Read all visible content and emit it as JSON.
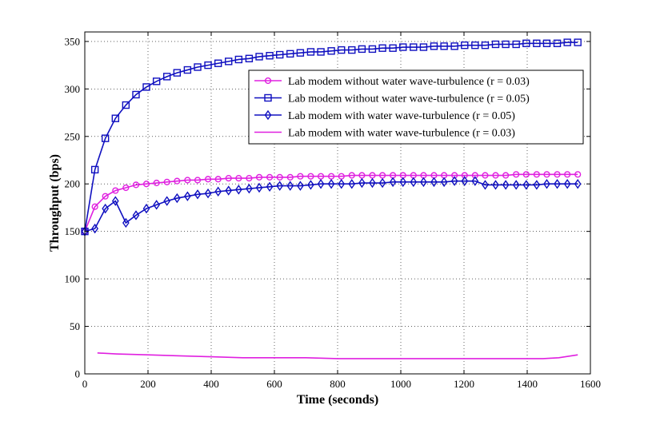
{
  "chart_data": {
    "type": "line",
    "title": "",
    "xlabel": "Time (seconds)",
    "ylabel": "Throughput (bps)",
    "xlim": [
      0,
      1600
    ],
    "ylim": [
      0,
      360
    ],
    "xticks": [
      "0",
      "200",
      "400",
      "600",
      "800",
      "1000",
      "1200",
      "1400",
      "1600"
    ],
    "yticks": [
      "0",
      "50",
      "100",
      "150",
      "200",
      "250",
      "300",
      "350"
    ],
    "grid": "dotted",
    "legend_position": "upper-right",
    "series": [
      {
        "name": "Lab modem without water wave-turbulence (r = 0.03)",
        "color": "#e020e0",
        "marker": "circle",
        "x": [
          0,
          32,
          65,
          97,
          130,
          162,
          195,
          227,
          260,
          292,
          325,
          357,
          390,
          422,
          455,
          487,
          520,
          552,
          585,
          617,
          650,
          682,
          715,
          747,
          780,
          812,
          845,
          877,
          910,
          942,
          975,
          1007,
          1040,
          1072,
          1105,
          1137,
          1170,
          1202,
          1235,
          1267,
          1300,
          1332,
          1365,
          1397,
          1430,
          1462,
          1495,
          1527,
          1560
        ],
        "y": [
          150,
          176,
          187,
          193,
          196,
          199,
          200,
          201,
          202,
          203,
          204,
          204,
          205,
          205,
          206,
          206,
          206,
          207,
          207,
          207,
          207,
          208,
          208,
          208,
          208,
          208,
          209,
          209,
          209,
          209,
          209,
          209,
          209,
          209,
          209,
          209,
          209,
          209,
          209,
          209,
          209,
          209,
          210,
          210,
          210,
          210,
          210,
          210,
          210
        ]
      },
      {
        "name": "Lab modem without water wave-turbulence (r = 0.05)",
        "color": "#1010c0",
        "marker": "square",
        "x": [
          0,
          32,
          65,
          97,
          130,
          162,
          195,
          227,
          260,
          292,
          325,
          357,
          390,
          422,
          455,
          487,
          520,
          552,
          585,
          617,
          650,
          682,
          715,
          747,
          780,
          812,
          845,
          877,
          910,
          942,
          975,
          1007,
          1040,
          1072,
          1105,
          1137,
          1170,
          1202,
          1235,
          1267,
          1300,
          1332,
          1365,
          1397,
          1430,
          1462,
          1495,
          1527,
          1560
        ],
        "y": [
          150,
          215,
          248,
          269,
          283,
          294,
          302,
          308,
          313,
          317,
          320,
          323,
          325,
          327,
          329,
          331,
          332,
          334,
          335,
          336,
          337,
          338,
          339,
          339,
          340,
          341,
          341,
          342,
          342,
          343,
          343,
          344,
          344,
          344,
          345,
          345,
          345,
          346,
          346,
          346,
          347,
          347,
          347,
          348,
          348,
          348,
          348,
          349,
          349
        ]
      },
      {
        "name": "Lab modem with water wave-turbulence (r = 0.05)",
        "color": "#1010c0",
        "marker": "diamond",
        "x": [
          0,
          32,
          65,
          97,
          130,
          162,
          195,
          227,
          260,
          292,
          325,
          357,
          390,
          422,
          455,
          487,
          520,
          552,
          585,
          617,
          650,
          682,
          715,
          747,
          780,
          812,
          845,
          877,
          910,
          942,
          975,
          1007,
          1040,
          1072,
          1105,
          1137,
          1170,
          1202,
          1235,
          1267,
          1300,
          1332,
          1365,
          1397,
          1430,
          1462,
          1495,
          1527,
          1560
        ],
        "y": [
          150,
          153,
          174,
          182,
          159,
          167,
          174,
          178,
          182,
          185,
          187,
          189,
          190,
          192,
          193,
          194,
          195,
          196,
          197,
          198,
          198,
          198,
          199,
          200,
          200,
          200,
          200,
          201,
          201,
          201,
          202,
          202,
          202,
          202,
          202,
          202,
          203,
          203,
          203,
          199,
          199,
          199,
          199,
          199,
          199,
          200,
          200,
          200,
          200
        ]
      },
      {
        "name": "Lab modem with water wave-turbulence (r = 0.03)",
        "color": "#e020e0",
        "marker": "none",
        "x": [
          40,
          100,
          200,
          300,
          400,
          500,
          600,
          700,
          800,
          900,
          1000,
          1100,
          1200,
          1300,
          1400,
          1450,
          1500,
          1560
        ],
        "y": [
          22,
          21,
          20,
          19,
          18,
          17,
          17,
          17,
          16,
          16,
          16,
          16,
          16,
          16,
          16,
          16,
          17,
          20
        ]
      }
    ]
  }
}
